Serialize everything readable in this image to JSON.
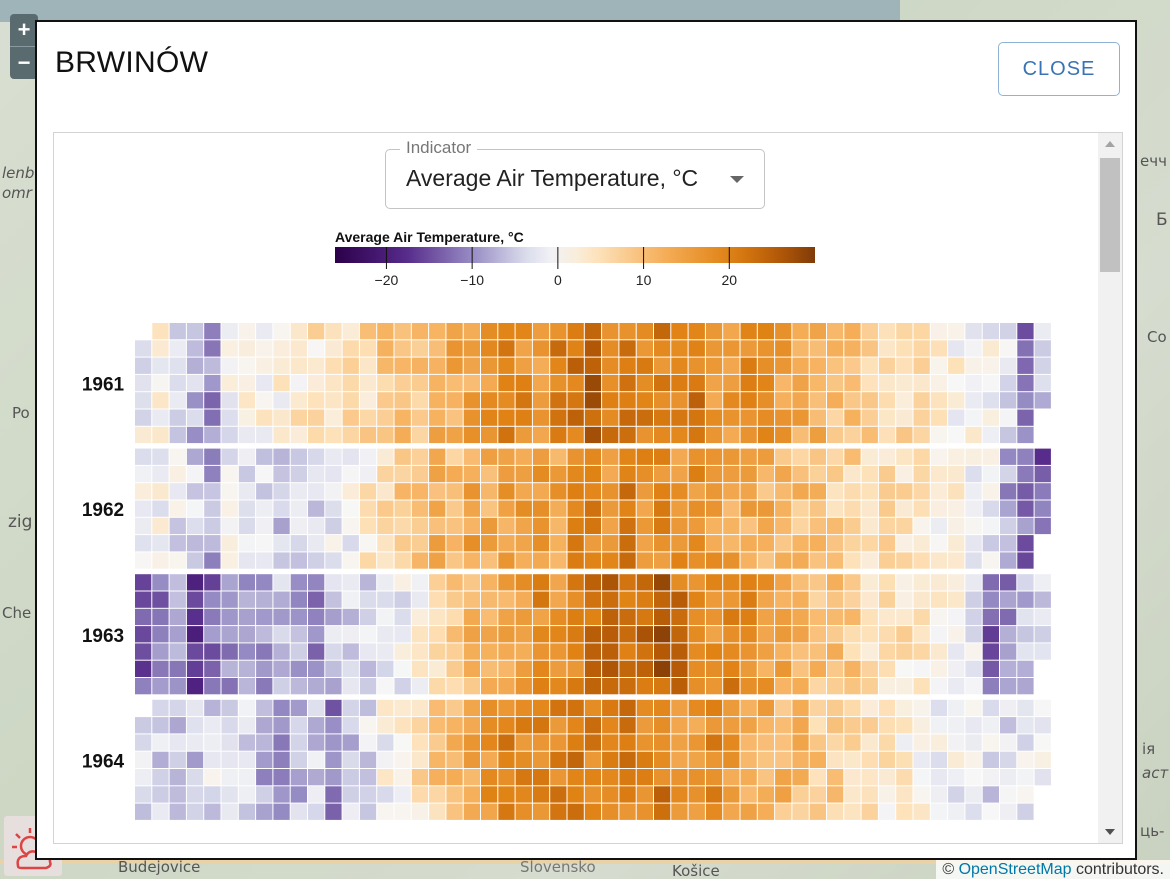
{
  "map": {
    "labels": [
      "Budejovice",
      "Slovensko",
      "Košice",
      "Po",
      "zig",
      "Che",
      "Co",
      "Б",
      "ечч",
      "omr",
      "lenb",
      "ць-",
      "ія",
      "аст"
    ],
    "zoom_in": "+",
    "zoom_out": "−",
    "attribution_prefix": "© ",
    "attribution_link": "OpenStreetMap",
    "attribution_suffix": " contributors."
  },
  "dialog": {
    "title": "BRWINÓW",
    "close_label": "CLOSE"
  },
  "indicator": {
    "legend": "Indicator",
    "value": "Average Air Temperature, °C"
  },
  "colorbar": {
    "title": "Average Air Temperature, °C",
    "ticks": [
      "−20",
      "−10",
      "0",
      "10",
      "20"
    ],
    "tick_values": [
      -20,
      -10,
      0,
      10,
      20
    ],
    "domain": [
      -26,
      30
    ],
    "palette": "PuOr (purple = cold, orange = warm)"
  },
  "chart_data": {
    "type": "heatmap",
    "title": "",
    "xlabel": "",
    "ylabel": "",
    "rows_label": "year",
    "years": [
      "1961",
      "1962",
      "1963",
      "1964"
    ],
    "layout": "calendar grid: columns = weeks of year (~53), rows = days of week (7)",
    "colorbar_title": "Average Air Temperature, °C",
    "color_domain": [
      -26,
      30
    ],
    "weekly_profile_estimate": {
      "1961": [
        -1,
        1,
        -2,
        -6,
        -10,
        -1,
        0,
        1,
        2,
        3,
        4,
        2,
        5,
        6,
        9,
        10,
        8,
        12,
        13,
        14,
        16,
        19,
        18,
        16,
        20,
        22,
        24,
        21,
        20,
        19,
        20,
        18,
        21,
        17,
        16,
        19,
        16,
        14,
        13,
        12,
        10,
        9,
        8,
        7,
        5,
        4,
        3,
        1,
        0,
        -1,
        -3,
        -12,
        -4
      ],
      "1962": [
        -1,
        0,
        -2,
        -4,
        -8,
        -1,
        -2,
        -4,
        -6,
        -4,
        -3,
        -2,
        0,
        3,
        5,
        8,
        10,
        12,
        9,
        14,
        13,
        15,
        16,
        17,
        14,
        18,
        19,
        16,
        20,
        17,
        18,
        16,
        17,
        15,
        14,
        13,
        12,
        11,
        10,
        9,
        8,
        7,
        6,
        5,
        4,
        3,
        2,
        1,
        0,
        -2,
        -8,
        -12,
        -14
      ],
      "1963": [
        -14,
        -12,
        -10,
        -16,
        -12,
        -10,
        -9,
        -8,
        -6,
        -8,
        -10,
        -5,
        -4,
        -3,
        -2,
        -1,
        2,
        5,
        8,
        11,
        12,
        14,
        16,
        18,
        17,
        20,
        22,
        23,
        21,
        24,
        25,
        22,
        20,
        18,
        19,
        17,
        15,
        14,
        12,
        10,
        9,
        8,
        6,
        5,
        4,
        3,
        1,
        0,
        -2,
        -14,
        -10,
        -6,
        -4
      ],
      "1964": [
        -3,
        -4,
        -6,
        -5,
        -3,
        -2,
        -4,
        -8,
        -10,
        -6,
        -4,
        -12,
        -5,
        -3,
        0,
        2,
        5,
        8,
        11,
        14,
        17,
        19,
        18,
        20,
        19,
        21,
        20,
        18,
        20,
        19,
        21,
        17,
        16,
        18,
        15,
        14,
        12,
        11,
        10,
        8,
        7,
        6,
        4,
        3,
        2,
        1,
        0,
        -1,
        -2,
        -3,
        -4,
        -3,
        -2
      ]
    }
  }
}
